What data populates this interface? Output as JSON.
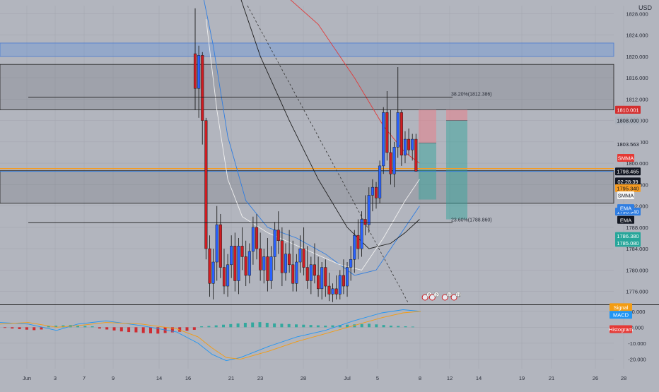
{
  "header": {
    "currency": "USD"
  },
  "colors": {
    "background": "#b2b5be",
    "bull": "#26a69a",
    "bull_body": "#2962ff",
    "bear": "#d01d22",
    "grid": "#a5a8b1",
    "axis_text": "#2a2e39",
    "ema_black": "#1e1e1e",
    "ema_white": "#f0f0f0",
    "blue_ma": "#2f7de1",
    "red_ma": "#e03a3a",
    "orange_line": "#f59b22",
    "blue_zone": "#5b8fe0",
    "signal": "#f39c12",
    "macd": "#2196f3"
  },
  "chart_data": [
    {
      "type": "candlestick",
      "panel": "price",
      "x_ticks": [
        "Jun",
        "3",
        "7",
        "9",
        "14",
        "16",
        "21",
        "23",
        "28",
        "Jul",
        "5",
        "8",
        "12",
        "14",
        "19",
        "21",
        "26",
        "28"
      ],
      "y_ticks": [
        "1828.000",
        "1824.000",
        "1820.000",
        "1816.000",
        "1812.000",
        "1808.000",
        "1804.000",
        "1800.000",
        "1796.000",
        "1792.000",
        "1788.000",
        "1784.000",
        "1780.000",
        "1776.000"
      ],
      "ylim": [
        1773.7,
        1829.5
      ],
      "candles": [
        [
          1820.5,
          1829.0,
          1810.0,
          1814.0
        ],
        [
          1814.0,
          1822.0,
          1808.5,
          1820.2
        ],
        [
          1820.2,
          1820.8,
          1803.5,
          1808.0
        ],
        [
          1808.0,
          1808.5,
          1782.0,
          1784.0
        ],
        [
          1784.0,
          1786.5,
          1775.0,
          1777.5
        ],
        [
          1777.5,
          1784.0,
          1774.5,
          1781.5
        ],
        [
          1781.5,
          1792.0,
          1778.0,
          1788.5
        ],
        [
          1788.5,
          1790.5,
          1778.5,
          1780.5
        ],
        [
          1780.5,
          1784.0,
          1775.5,
          1777.0
        ],
        [
          1777.0,
          1783.0,
          1775.0,
          1781.0
        ],
        [
          1781.0,
          1786.5,
          1778.5,
          1784.5
        ],
        [
          1784.5,
          1787.0,
          1776.0,
          1778.0
        ],
        [
          1778.0,
          1786.0,
          1775.5,
          1784.5
        ],
        [
          1784.5,
          1788.0,
          1780.0,
          1782.5
        ],
        [
          1782.5,
          1785.5,
          1777.0,
          1779.0
        ],
        [
          1779.0,
          1785.0,
          1777.5,
          1783.5
        ],
        [
          1783.5,
          1790.0,
          1781.0,
          1788.0
        ],
        [
          1788.0,
          1790.5,
          1782.0,
          1784.0
        ],
        [
          1784.0,
          1787.0,
          1778.0,
          1780.0
        ],
        [
          1780.0,
          1784.0,
          1777.5,
          1782.5
        ],
        [
          1782.5,
          1786.0,
          1776.0,
          1778.0
        ],
        [
          1778.0,
          1784.5,
          1776.5,
          1782.5
        ],
        [
          1782.5,
          1789.0,
          1780.0,
          1787.5
        ],
        [
          1787.5,
          1791.0,
          1783.0,
          1785.5
        ],
        [
          1785.5,
          1788.0,
          1777.0,
          1779.5
        ],
        [
          1779.5,
          1785.0,
          1778.0,
          1783.0
        ],
        [
          1783.0,
          1787.5,
          1779.5,
          1781.0
        ],
        [
          1781.0,
          1785.5,
          1776.0,
          1777.5
        ],
        [
          1777.5,
          1783.0,
          1776.0,
          1781.5
        ],
        [
          1781.5,
          1786.5,
          1779.5,
          1784.0
        ],
        [
          1784.0,
          1788.0,
          1779.0,
          1780.5
        ],
        [
          1780.5,
          1784.5,
          1776.5,
          1778.0
        ],
        [
          1778.0,
          1782.5,
          1775.5,
          1781.0
        ],
        [
          1781.0,
          1785.0,
          1777.5,
          1779.0
        ],
        [
          1779.0,
          1782.5,
          1775.0,
          1776.5
        ],
        [
          1776.5,
          1781.5,
          1774.5,
          1780.5
        ],
        [
          1780.5,
          1782.0,
          1775.0,
          1777.0
        ],
        [
          1777.0,
          1779.5,
          1774.2,
          1775.5
        ],
        [
          1775.5,
          1777.5,
          1774.0,
          1776.5
        ],
        [
          1776.5,
          1779.0,
          1774.5,
          1775.5
        ],
        [
          1775.5,
          1780.0,
          1774.5,
          1779.0
        ],
        [
          1779.0,
          1782.0,
          1775.5,
          1777.0
        ],
        [
          1777.0,
          1781.5,
          1775.0,
          1780.5
        ],
        [
          1780.5,
          1784.5,
          1778.0,
          1782.0
        ],
        [
          1782.0,
          1787.5,
          1779.5,
          1786.5
        ],
        [
          1786.5,
          1789.5,
          1782.0,
          1784.0
        ],
        [
          1784.0,
          1791.0,
          1782.5,
          1789.5
        ],
        [
          1789.5,
          1794.0,
          1786.5,
          1788.5
        ],
        [
          1788.5,
          1795.5,
          1787.0,
          1794.0
        ],
        [
          1794.0,
          1797.0,
          1791.0,
          1795.5
        ],
        [
          1795.5,
          1796.5,
          1791.5,
          1793.5
        ],
        [
          1793.5,
          1800.5,
          1792.5,
          1799.5
        ],
        [
          1799.5,
          1810.5,
          1798.0,
          1809.5
        ],
        [
          1809.5,
          1813.5,
          1800.5,
          1802.0
        ],
        [
          1802.0,
          1810.0,
          1796.0,
          1798.0
        ],
        [
          1798.0,
          1804.0,
          1795.5,
          1803.0
        ],
        [
          1803.0,
          1818.0,
          1801.0,
          1809.5
        ],
        [
          1809.5,
          1810.0,
          1799.5,
          1801.5
        ],
        [
          1801.5,
          1806.0,
          1800.0,
          1804.5
        ],
        [
          1804.5,
          1806.5,
          1801.5,
          1802.5
        ],
        [
          1802.5,
          1805.5,
          1800.5,
          1804.5
        ],
        [
          1804.5,
          1805.5,
          1799.0,
          1798.5
        ]
      ],
      "fib_levels": [
        {
          "label": "38.20%(1812.386)",
          "value": 1812.386
        },
        {
          "label": "23.60%(1788.860)",
          "value": 1788.86
        }
      ],
      "zones": [
        {
          "name": "blue-zone",
          "low": 1820.0,
          "high": 1822.5
        },
        {
          "name": "upper-resistance-zone",
          "low": 1810.0,
          "high": 1818.5
        },
        {
          "name": "mid-support-zone",
          "low": 1792.5,
          "high": 1798.6
        }
      ],
      "positions": [
        {
          "entry": 1803.8,
          "stop": 1810.0,
          "target": 1793.2
        },
        {
          "entry": 1808.0,
          "stop": 1810.0,
          "target": 1789.5
        }
      ],
      "price_labels": [
        {
          "text": "1810.034",
          "value": 1810.034,
          "color": "#e03a3a"
        },
        {
          "text": "1810.001",
          "value": 1810.001,
          "color": "#d32f2f"
        },
        {
          "text": "1808.000",
          "value": 1808.0,
          "color": "#aab0ba",
          "dark_text": true
        },
        {
          "text": "1803.563",
          "value": 1803.563,
          "color": "#b2b5be",
          "dark_text": true,
          "plain": true
        },
        {
          "text": "1798.465",
          "value": 1798.465,
          "color": "#131722"
        },
        {
          "text": "02:28:39",
          "value": 1796.6,
          "color": "#131722"
        },
        {
          "text": "1795.340",
          "value": 1795.34,
          "color": "#f59b22",
          "dark_text": true
        },
        {
          "text": "1790.940",
          "value": 1790.94,
          "color": "#2f7de1"
        },
        {
          "text": "1786.380",
          "value": 1786.38,
          "color": "#26a69a"
        },
        {
          "text": "1785.080",
          "value": 1785.08,
          "color": "#26a69a"
        }
      ],
      "indicator_tags": [
        {
          "text": "SMMA",
          "value": 1801.0,
          "color": "#e53935"
        },
        {
          "text": "SMMA",
          "value": 1794.0,
          "color": "#f5f5f5",
          "dark_text": true
        },
        {
          "text": "EMA",
          "value": 1791.6,
          "color": "#2f7de1"
        },
        {
          "text": "EMA",
          "value": 1789.4,
          "color": "#131722"
        }
      ],
      "event_icons": [
        {
          "badge": "9",
          "x_index": 63.5
        },
        {
          "badge": "2",
          "x_index": 65.5
        },
        {
          "badge": "11",
          "x_index": 69.0
        },
        {
          "badge": "11",
          "x_index": 71.5
        }
      ]
    },
    {
      "type": "macd",
      "panel": "indicator",
      "y_ticks": [
        "10.000",
        "0.000",
        "-10.000",
        "-20.000"
      ],
      "ylim": [
        -26,
        13
      ],
      "legend_tags": [
        {
          "text": "Signal",
          "value": 12.6,
          "color": "#f39c12"
        },
        {
          "text": "MACD",
          "value": 7.8,
          "color": "#2196f3"
        },
        {
          "text": "Histogram",
          "value": -1.2,
          "color": "#e53935"
        }
      ]
    }
  ]
}
